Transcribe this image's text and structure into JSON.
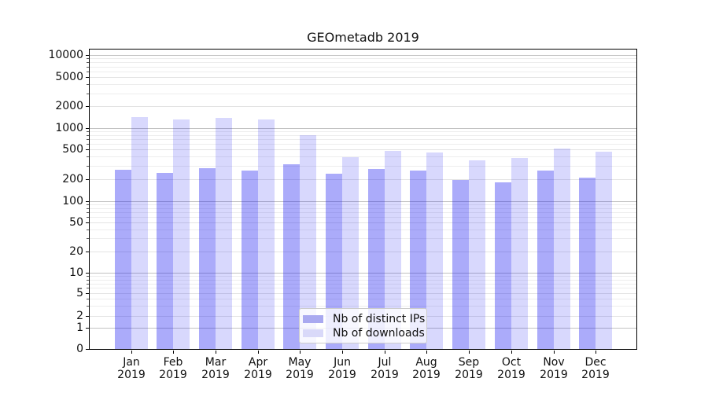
{
  "chart_data": {
    "type": "bar",
    "title": "GEOmetadb 2019",
    "categories": [
      "Jan 2019",
      "Feb 2019",
      "Mar 2019",
      "Apr 2019",
      "May 2019",
      "Jun 2019",
      "Jul 2019",
      "Aug 2019",
      "Sep 2019",
      "Oct 2019",
      "Nov 2019",
      "Dec 2019"
    ],
    "series": [
      {
        "name": "Nb of distinct IPs",
        "color": "#a9a9f0",
        "fill": "rgba(13,13,240,0.35)",
        "values": [
          270,
          242,
          281,
          262,
          318,
          240,
          278,
          260,
          196,
          182,
          265,
          213
        ]
      },
      {
        "name": "Nb of downloads",
        "color": "#d9d9f9",
        "fill": "rgba(13,13,240,0.16)",
        "values": [
          1430,
          1310,
          1380,
          1330,
          800,
          390,
          475,
          458,
          356,
          383,
          515,
          462
        ]
      }
    ],
    "xlabel": "",
    "ylabel": "",
    "yscale": "symlog",
    "ylim": [
      0,
      12000
    ],
    "yticks": [
      0,
      1,
      2,
      5,
      10,
      20,
      50,
      100,
      200,
      500,
      1000,
      2000,
      5000,
      10000
    ],
    "grid": true,
    "gridline_colors": {
      "major": "#c2c2c2",
      "labeled_minor": "#e3e3e3",
      "minor": "#ededed"
    },
    "legend": {
      "position": "lower-center",
      "entries": [
        "Nb of distinct IPs",
        "Nb of downloads"
      ]
    }
  }
}
